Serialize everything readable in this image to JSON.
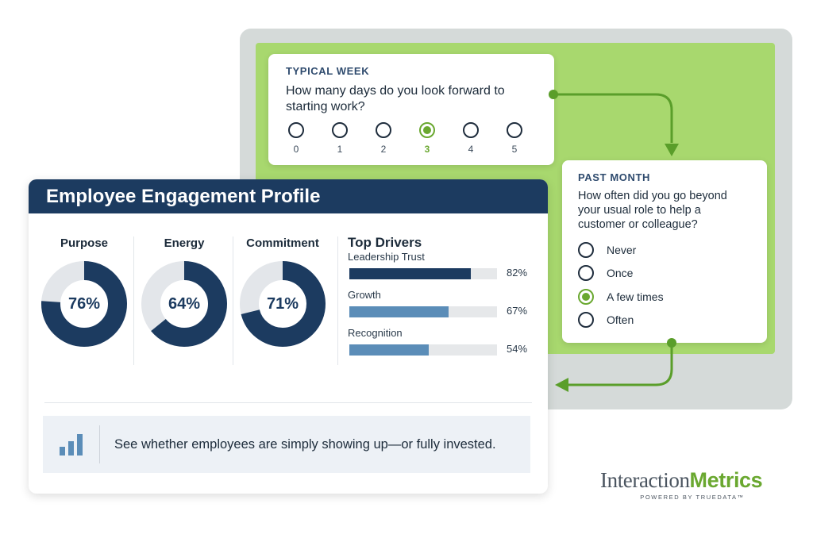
{
  "survey": {
    "question1": {
      "tag": "TYPICAL WEEK",
      "text": "How many days do you look forward to starting work?",
      "options": [
        "0",
        "1",
        "2",
        "3",
        "4",
        "5"
      ],
      "selected": "3"
    },
    "question2": {
      "tag": "PAST MONTH",
      "text": "How often did you go beyond your usual role to help a customer or colleague?",
      "options": [
        "Never",
        "Once",
        "A few times",
        "Often"
      ],
      "selected": "A few times"
    }
  },
  "profile": {
    "title": "Employee Engagement Profile",
    "metrics": [
      {
        "label": "Purpose",
        "value": "76%",
        "percent": 76
      },
      {
        "label": "Energy",
        "value": "64%",
        "percent": 64
      },
      {
        "label": "Commitment",
        "value": "71%",
        "percent": 71
      }
    ],
    "drivers_title": "Top Drivers",
    "drivers": [
      {
        "label": "Leadership Trust",
        "value": "82%",
        "percent": 82,
        "color": "#1c3b60"
      },
      {
        "label": "Growth",
        "value": "67%",
        "percent": 67,
        "color": "#5b8db8"
      },
      {
        "label": "Recognition",
        "value": "54%",
        "percent": 54,
        "color": "#5b8db8"
      }
    ],
    "footer_icon": "bar-chart-icon",
    "footer_text": "See whether employees are simply showing up—or fully invested."
  },
  "logo": {
    "part1": "Interaction",
    "part2": "Metrics",
    "tagline": "POWERED BY TRUEDATA™"
  },
  "colors": {
    "navy": "#1c3b60",
    "green": "#6aa830",
    "light_green": "#a8d86e",
    "donut_track": "#e3e6ea",
    "frame_gray": "#d5dad9"
  }
}
